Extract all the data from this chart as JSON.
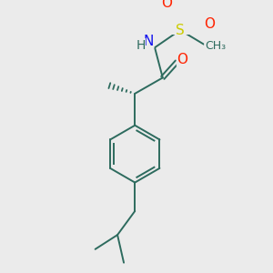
{
  "background_color": "#ebebeb",
  "bond_color": "#2d6b5e",
  "atom_colors": {
    "O": "#ff2200",
    "N": "#1010ee",
    "S": "#cccc00",
    "H": "#2d6b5e",
    "C": "#2d6b5e"
  },
  "figsize": [
    3.0,
    3.0
  ],
  "dpi": 100
}
